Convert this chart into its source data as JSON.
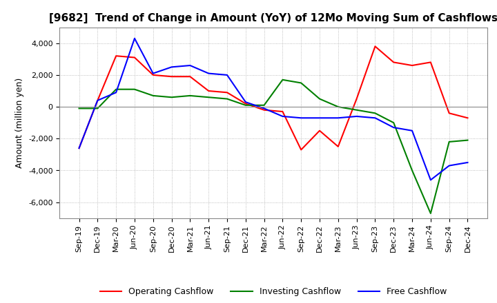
{
  "title": "[9682]  Trend of Change in Amount (YoY) of 12Mo Moving Sum of Cashflows",
  "ylabel": "Amount (million yen)",
  "ylim": [
    -7000,
    5000
  ],
  "yticks": [
    -6000,
    -4000,
    -2000,
    0,
    2000,
    4000
  ],
  "x_labels": [
    "Sep-19",
    "Dec-19",
    "Mar-20",
    "Jun-20",
    "Sep-20",
    "Dec-20",
    "Mar-21",
    "Jun-21",
    "Sep-21",
    "Dec-21",
    "Mar-22",
    "Jun-22",
    "Sep-22",
    "Dec-22",
    "Mar-23",
    "Jun-23",
    "Sep-23",
    "Dec-23",
    "Mar-24",
    "Jun-24",
    "Sep-24",
    "Dec-24"
  ],
  "operating": [
    -2600,
    400,
    3200,
    3100,
    2000,
    1900,
    1900,
    1000,
    900,
    200,
    -200,
    -300,
    -2700,
    -1500,
    -2500,
    500,
    3800,
    2800,
    2600,
    2800,
    -400,
    -700
  ],
  "investing": [
    -100,
    -100,
    1100,
    1100,
    700,
    600,
    700,
    600,
    500,
    100,
    100,
    1700,
    1500,
    500,
    0,
    -200,
    -400,
    -1000,
    -4000,
    -6700,
    -2200,
    -2100
  ],
  "free": [
    -2600,
    400,
    900,
    4300,
    2100,
    2500,
    2600,
    2100,
    2000,
    300,
    -100,
    -600,
    -700,
    -700,
    -700,
    -600,
    -700,
    -1300,
    -1500,
    -4600,
    -3700,
    -3500
  ],
  "operating_color": "#ff0000",
  "investing_color": "#008000",
  "free_color": "#0000ff",
  "grid_color": "#aaaaaa",
  "background_color": "#ffffff",
  "title_fontsize": 11,
  "label_fontsize": 9,
  "tick_fontsize": 8
}
